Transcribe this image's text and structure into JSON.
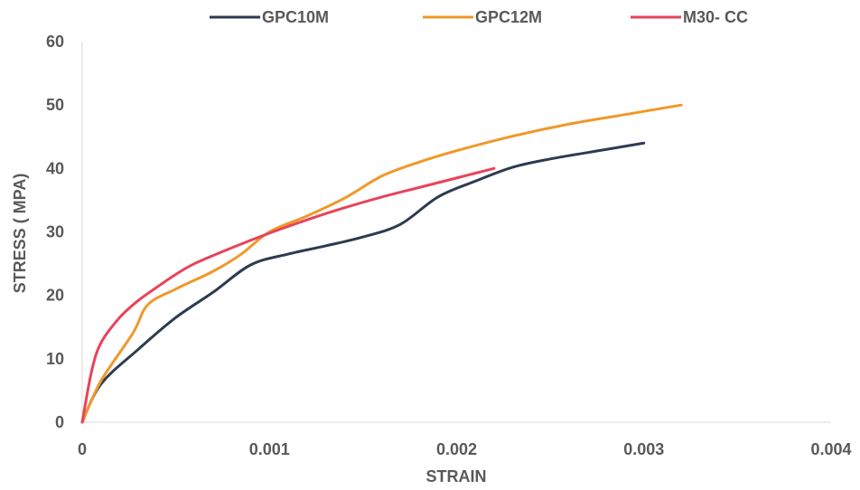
{
  "chart_data": {
    "type": "line",
    "xlabel": "STRAIN",
    "ylabel": "STRESS ( MPA)",
    "xlim": [
      0,
      0.004
    ],
    "ylim": [
      0,
      60
    ],
    "x_ticks": [
      "0",
      "0.001",
      "0.002",
      "0.003",
      "0.004"
    ],
    "y_ticks": [
      "0",
      "10",
      "20",
      "30",
      "40",
      "50",
      "60"
    ],
    "grid": false,
    "legend_position": "top",
    "series": [
      {
        "name": "GPC10M",
        "color": "#2e3b50",
        "points": [
          [
            0,
            0
          ],
          [
            0.0001,
            6
          ],
          [
            0.0003,
            11.5
          ],
          [
            0.0005,
            16.5
          ],
          [
            0.0007,
            20.5
          ],
          [
            0.0009,
            24.8
          ],
          [
            0.0011,
            26.5
          ],
          [
            0.0013,
            27.8
          ],
          [
            0.0015,
            29.2
          ],
          [
            0.0017,
            31.2
          ],
          [
            0.0019,
            35.5
          ],
          [
            0.0021,
            38
          ],
          [
            0.0023,
            40.2
          ],
          [
            0.0025,
            41.5
          ],
          [
            0.0028,
            43
          ],
          [
            0.003,
            44
          ]
        ]
      },
      {
        "name": "GPC12M",
        "color": "#f0982a",
        "points": [
          [
            0,
            0
          ],
          [
            0.0001,
            6.5
          ],
          [
            0.00027,
            14
          ],
          [
            0.00035,
            18.5
          ],
          [
            0.0005,
            21
          ],
          [
            0.0007,
            23.8
          ],
          [
            0.00085,
            26.5
          ],
          [
            0.001,
            30
          ],
          [
            0.0012,
            32.5
          ],
          [
            0.0014,
            35.3
          ],
          [
            0.0016,
            38.8
          ],
          [
            0.0018,
            41
          ],
          [
            0.002,
            42.8
          ],
          [
            0.0023,
            45.1
          ],
          [
            0.0026,
            47
          ],
          [
            0.0029,
            48.5
          ],
          [
            0.0032,
            50
          ]
        ]
      },
      {
        "name": "M30- CC",
        "color": "#e8435a",
        "points": [
          [
            0,
            0
          ],
          [
            5e-05,
            8
          ],
          [
            0.0001,
            12.5
          ],
          [
            0.0002,
            16.5
          ],
          [
            0.0003,
            19.2
          ],
          [
            0.0004,
            21.3
          ],
          [
            0.0005,
            23.3
          ],
          [
            0.0006,
            25
          ],
          [
            0.0008,
            27.5
          ],
          [
            0.001,
            29.8
          ],
          [
            0.0012,
            31.9
          ],
          [
            0.0014,
            33.8
          ],
          [
            0.0016,
            35.5
          ],
          [
            0.0018,
            37
          ],
          [
            0.002,
            38.5
          ],
          [
            0.0022,
            40
          ]
        ]
      }
    ]
  }
}
